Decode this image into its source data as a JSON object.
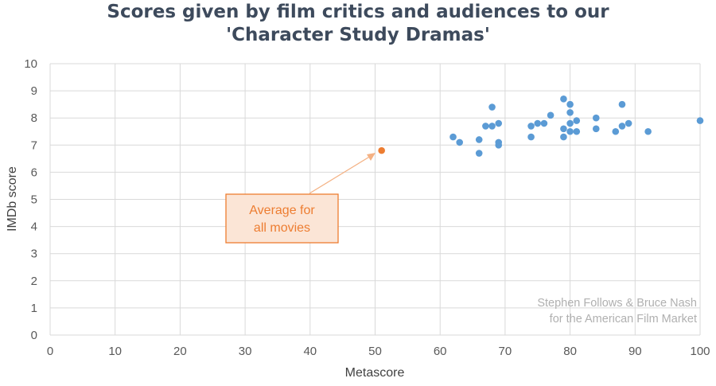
{
  "chart_data": {
    "type": "scatter",
    "title_line1": "Scores given by film critics and audiences to our",
    "title_line2": "'Character Study Dramas'",
    "xlabel": "Metascore",
    "ylabel": "IMDb score",
    "xlim": [
      0,
      100
    ],
    "ylim": [
      0,
      10
    ],
    "x_ticks": [
      "0",
      "10",
      "20",
      "30",
      "40",
      "50",
      "60",
      "70",
      "80",
      "90",
      "100"
    ],
    "y_ticks": [
      "0",
      "1",
      "2",
      "3",
      "4",
      "5",
      "6",
      "7",
      "8",
      "9",
      "10"
    ],
    "grid": true,
    "series": [
      {
        "color": "#5b9bd5",
        "points": [
          [
            62,
            7.3
          ],
          [
            63,
            7.1
          ],
          [
            66,
            7.2
          ],
          [
            66,
            6.7
          ],
          [
            67,
            7.7
          ],
          [
            68,
            8.4
          ],
          [
            68,
            7.7
          ],
          [
            69,
            7.8
          ],
          [
            69,
            7.1
          ],
          [
            69,
            7.0
          ],
          [
            74,
            7.7
          ],
          [
            74,
            7.3
          ],
          [
            75,
            7.8
          ],
          [
            76,
            7.8
          ],
          [
            77,
            8.1
          ],
          [
            79,
            8.7
          ],
          [
            79,
            7.6
          ],
          [
            79,
            7.3
          ],
          [
            80,
            8.5
          ],
          [
            80,
            8.2
          ],
          [
            80,
            7.8
          ],
          [
            80,
            7.5
          ],
          [
            81,
            7.9
          ],
          [
            81,
            7.5
          ],
          [
            84,
            8.0
          ],
          [
            84,
            7.6
          ],
          [
            87,
            7.5
          ],
          [
            88,
            8.5
          ],
          [
            88,
            7.7
          ],
          [
            89,
            7.8
          ],
          [
            92,
            7.5
          ],
          [
            100,
            7.9
          ]
        ]
      },
      {
        "color": "#ed7d31",
        "points": [
          [
            51,
            6.8
          ]
        ]
      }
    ],
    "annotation": {
      "line1": "Average for",
      "line2": "all movies",
      "color": "#ed7d31"
    },
    "credit_line1": "Stephen Follows & Bruce Nash",
    "credit_line2": "for the American Film Market"
  }
}
